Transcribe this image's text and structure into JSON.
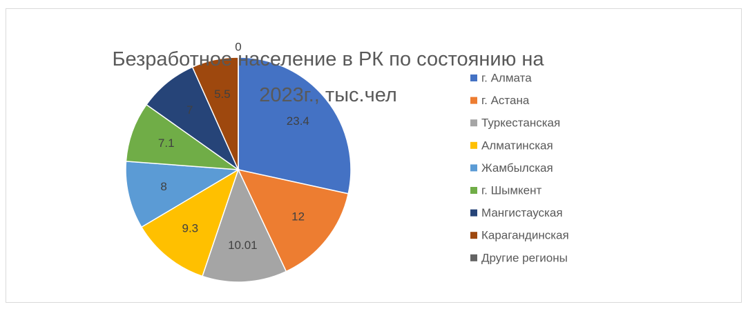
{
  "chart_data": {
    "type": "pie",
    "title": "Безработное население в РК по состоянию на 2023г., тыс.чел",
    "categories": [
      "г. Алмата",
      "г. Астана",
      "Туркестанская",
      "Алматинская",
      "Жамбылская",
      "г. Шымкент",
      "Мангистауская",
      "Карагандинская",
      "Другие регионы"
    ],
    "values": [
      23.4,
      12,
      10.01,
      9.3,
      8,
      7.1,
      7,
      5.5,
      0
    ],
    "colors": [
      "#4472c4",
      "#ed7d31",
      "#a5a5a5",
      "#ffc000",
      "#5b9bd5",
      "#70ad47",
      "#264478",
      "#9e480e",
      "#636363"
    ],
    "legend": "right"
  }
}
